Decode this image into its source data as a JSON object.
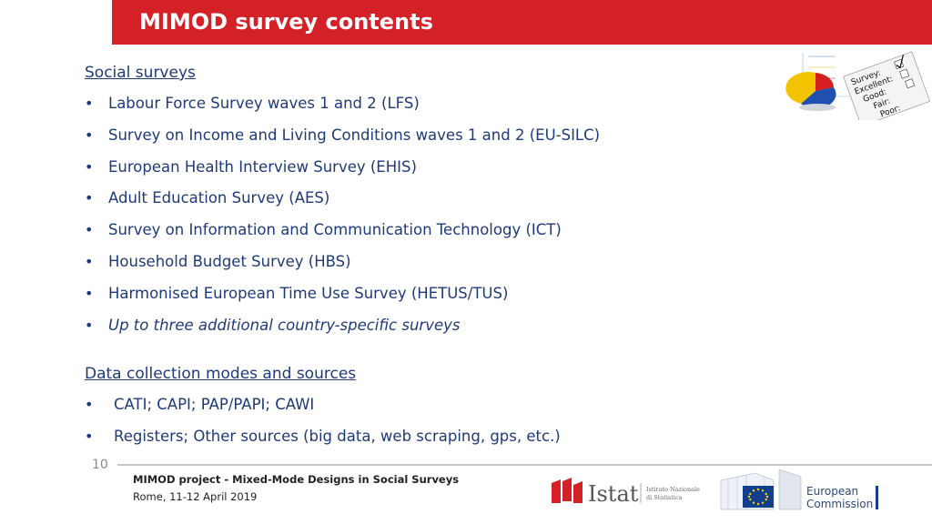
{
  "slide": {
    "title": "MIMOD survey contents",
    "page_number": "10"
  },
  "sections": {
    "social": {
      "heading": "Social surveys ",
      "items": [
        "Labour Force Survey waves 1 and 2  (LFS)",
        "Survey on Income and Living Conditions waves 1 and 2  (EU-SILC)",
        "European Health Interview Survey (EHIS)",
        "Adult Education Survey (AES)",
        "Survey on Information and Communication Technology (ICT)",
        "Household Budget Survey (HBS)",
        "Harmonised European Time Use Survey (HETUS/TUS)",
        "Up to three additional country-specific surveys"
      ]
    },
    "modes": {
      "heading": "Data collection modes and sources ",
      "items": [
        "CATI; CAPI; PAP/PAPI; CAWI",
        "Registers; Other sources (big data, web scraping, gps, etc.)"
      ]
    }
  },
  "footer": {
    "project": "MIMOD project - Mixed-Mode Designs in Social Surveys",
    "date": "Rome, 11-12 April 2019"
  },
  "logos": {
    "istat_name": "Istat",
    "istat_sub_1": "Istituto Nazionale",
    "istat_sub_2": "di Statistica",
    "ec_line_1": "European",
    "ec_line_2": "Commission"
  },
  "survey_image": {
    "lines": [
      "Survey:",
      "Excellent:",
      "Good:",
      "Fair:",
      "Poor:"
    ]
  },
  "colors": {
    "accent_red": "#d42027",
    "text_blue": "#1f3a7a",
    "eu_blue": "#123f8c",
    "eu_yellow": "#ffd200"
  }
}
